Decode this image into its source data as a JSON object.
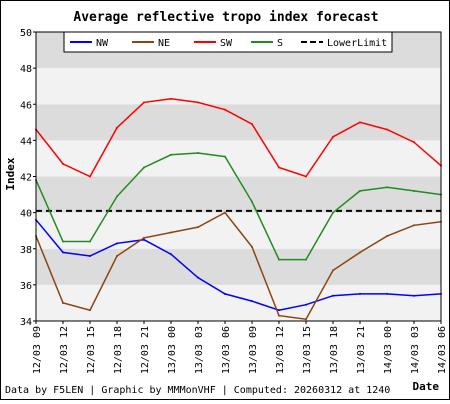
{
  "chart_data": {
    "type": "line",
    "title": "Average reflective tropo index forecast",
    "ylabel": "Index",
    "xlabel": "Date",
    "ylim": [
      34,
      50
    ],
    "yticks": [
      34,
      36,
      38,
      40,
      42,
      44,
      46,
      48,
      50
    ],
    "grid": "alternating horizontal bands",
    "legend_position": "top",
    "categories": [
      "12/03 09",
      "12/03 12",
      "12/03 15",
      "12/03 18",
      "12/03 21",
      "13/03 00",
      "13/03 03",
      "13/03 06",
      "13/03 09",
      "13/03 12",
      "13/03 15",
      "13/03 18",
      "13/03 21",
      "14/03 00",
      "14/03 03",
      "14/03 06"
    ],
    "series": [
      {
        "name": "NW",
        "color": "#0000ff",
        "values": [
          39.6,
          37.8,
          37.6,
          38.3,
          38.5,
          37.7,
          36.4,
          35.5,
          35.1,
          34.6,
          34.9,
          35.4,
          35.5,
          35.5,
          35.4,
          35.5
        ]
      },
      {
        "name": "NE",
        "color": "#8b4513",
        "values": [
          38.7,
          35.0,
          34.6,
          37.6,
          38.6,
          38.9,
          39.2,
          40.0,
          38.1,
          34.3,
          34.1,
          36.8,
          37.8,
          38.7,
          39.3,
          39.5
        ]
      },
      {
        "name": "SW",
        "color": "#ff0000",
        "values": [
          44.6,
          42.7,
          42.0,
          44.7,
          46.1,
          46.3,
          46.1,
          45.7,
          44.9,
          42.5,
          42.0,
          44.2,
          45.0,
          44.6,
          43.9,
          42.6
        ]
      },
      {
        "name": "S",
        "color": "#228b22",
        "values": [
          41.8,
          38.4,
          38.4,
          40.9,
          42.5,
          43.2,
          43.3,
          43.1,
          40.6,
          37.4,
          37.4,
          40.0,
          41.2,
          41.4,
          41.2,
          41.0
        ]
      }
    ],
    "threshold": {
      "name": "LowerLimit",
      "value": 40.1,
      "color": "#000000",
      "style": "dashed"
    }
  },
  "footer": {
    "credits": "Data by F5LEN | Graphic by MMMonVHF | Computed: 20260312 at 1240"
  }
}
